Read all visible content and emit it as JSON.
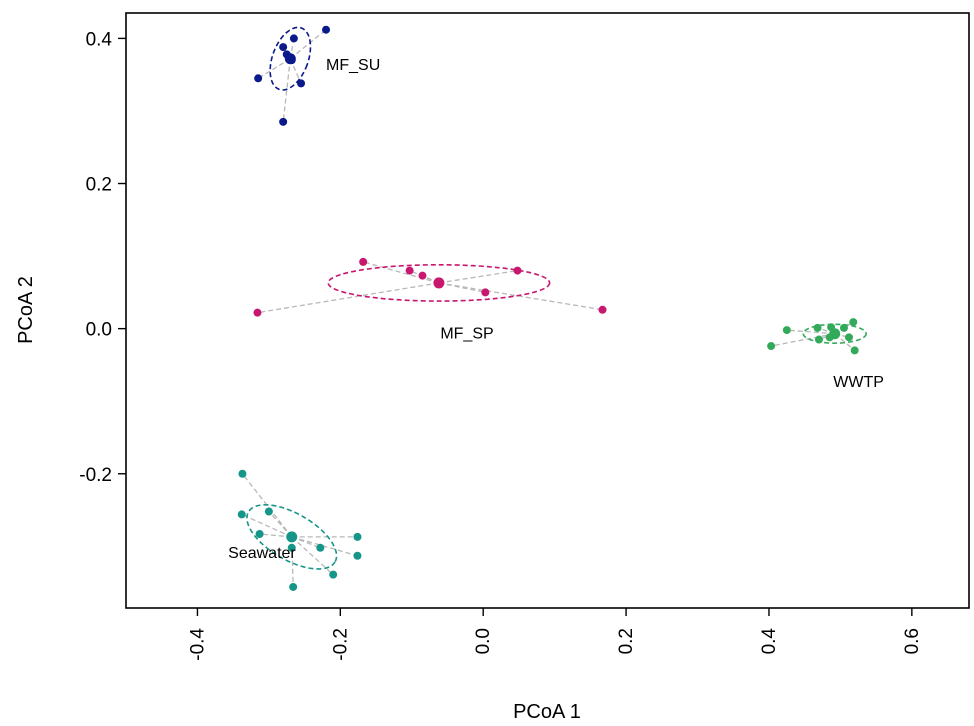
{
  "chart_data": {
    "type": "scatter",
    "xlabel": "PCoA 1",
    "ylabel": "PCoA 2",
    "xlim": [
      -0.5,
      0.68
    ],
    "ylim": [
      -0.385,
      0.435
    ],
    "xticks": [
      "-0.4",
      "-0.2",
      "0.0",
      "0.2",
      "0.4",
      "0.6"
    ],
    "xtick_values": [
      -0.4,
      -0.2,
      0.0,
      0.2,
      0.4,
      0.6
    ],
    "yticks": [
      "-0.2",
      "0.0",
      "0.2",
      "0.4"
    ],
    "ytick_values": [
      -0.2,
      0.0,
      0.2,
      0.4
    ],
    "grid": false,
    "legend": "none",
    "groups": [
      {
        "name": "MF_SU",
        "color": "#0b1a8a",
        "label_at": [
          -0.22,
          0.365
        ],
        "centroid": [
          -0.27,
          0.372
        ],
        "ellipse": {
          "rx": 0.025,
          "ry": 0.045,
          "angle_deg": 20
        },
        "points": [
          [
            -0.22,
            0.412
          ],
          [
            -0.265,
            0.4
          ],
          [
            -0.28,
            0.388
          ],
          [
            -0.275,
            0.378
          ],
          [
            -0.268,
            0.37
          ],
          [
            -0.315,
            0.345
          ],
          [
            -0.255,
            0.338
          ],
          [
            -0.28,
            0.285
          ]
        ]
      },
      {
        "name": "MF_SP",
        "color": "#c8176e",
        "label_at": [
          -0.06,
          -0.005
        ],
        "centroid": [
          -0.062,
          0.063
        ],
        "ellipse": {
          "rx": 0.155,
          "ry": 0.025,
          "angle_deg": 0
        },
        "points": [
          [
            -0.168,
            0.092
          ],
          [
            -0.103,
            0.08
          ],
          [
            -0.085,
            0.073
          ],
          [
            0.048,
            0.08
          ],
          [
            0.003,
            0.05
          ],
          [
            -0.316,
            0.022
          ],
          [
            0.167,
            0.026
          ]
        ]
      },
      {
        "name": "WWTP",
        "color": "#33aa5a",
        "label_at": [
          0.49,
          -0.072
        ],
        "centroid": [
          0.492,
          -0.007
        ],
        "ellipse": {
          "rx": 0.044,
          "ry": 0.013,
          "angle_deg": 0
        },
        "points": [
          [
            0.425,
            -0.002
          ],
          [
            0.468,
            0.001
          ],
          [
            0.487,
            0.002
          ],
          [
            0.505,
            0.001
          ],
          [
            0.518,
            0.009
          ],
          [
            0.47,
            -0.015
          ],
          [
            0.485,
            -0.012
          ],
          [
            0.512,
            -0.012
          ],
          [
            0.52,
            -0.03
          ],
          [
            0.403,
            -0.024
          ]
        ]
      },
      {
        "name": "Seawater",
        "color": "#169688",
        "label_at": [
          -0.357,
          -0.308
        ],
        "centroid": [
          -0.268,
          -0.287
        ],
        "ellipse": {
          "rx": 0.07,
          "ry": 0.032,
          "angle_deg": 30
        },
        "points": [
          [
            -0.337,
            -0.2
          ],
          [
            -0.3,
            -0.252
          ],
          [
            -0.338,
            -0.256
          ],
          [
            -0.313,
            -0.283
          ],
          [
            -0.228,
            -0.302
          ],
          [
            -0.176,
            -0.287
          ],
          [
            -0.176,
            -0.313
          ],
          [
            -0.268,
            -0.302
          ],
          [
            -0.21,
            -0.339
          ],
          [
            -0.266,
            -0.356
          ]
        ]
      }
    ]
  }
}
